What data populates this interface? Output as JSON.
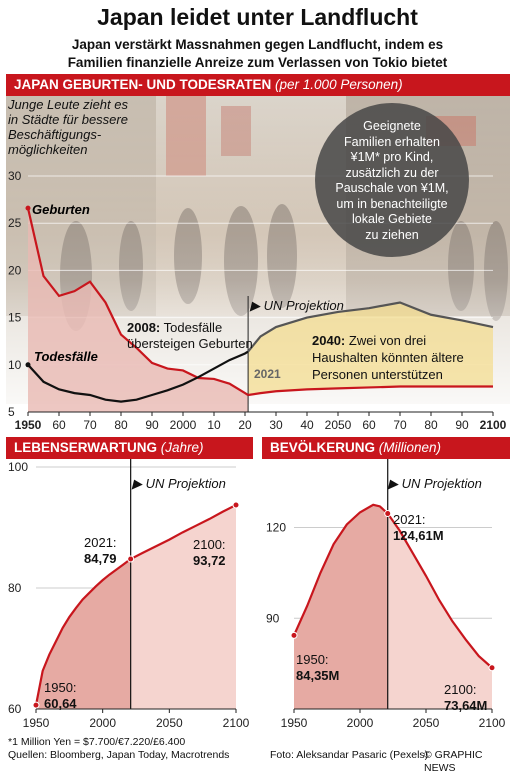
{
  "header": {
    "title": "Japan leidet unter Landflucht",
    "subtitle_line1": "Japan verstärkt Massnahmen gegen Landflucht, indem es",
    "subtitle_line2": "Familien finanzielle Anreize zum Verlassen von Tokio bietet"
  },
  "top_panel": {
    "band_title": "JAPAN GEBURTEN- UND TODESRATEN",
    "band_unit": "(per 1.000 Personen)",
    "note_lines": [
      "Junge Leute zieht es",
      "in Städte für bessere",
      "Beschäftigungs-",
      "möglichkeiten"
    ],
    "bubble_lines": [
      "Geeignete",
      "Familien erhalten",
      "¥1M* pro Kind,",
      "zusätzlich zu der",
      "Pauschale von ¥1M,",
      "um in benachteiligte",
      "lokale Gebiete",
      "zu ziehen"
    ],
    "projection_label": "UN Projektion",
    "year_2021_label": "2021",
    "annotation_2008_bold": "2008:",
    "annotation_2008_line1": "Todesfälle",
    "annotation_2008_line2": "übersteigen Geburten",
    "annotation_2040_bold": "2040:",
    "annotation_2040_line1": "Zwei von drei",
    "annotation_2040_line2": "Haushalten könnten ältere",
    "annotation_2040_line3": "Personen unterstützen",
    "y_ticks": [
      "30",
      "25",
      "20",
      "15",
      "10",
      "5"
    ],
    "x_ticks": [
      "1950",
      "60",
      "70",
      "80",
      "90",
      "2000",
      "10",
      "20",
      "30",
      "40",
      "2050",
      "60",
      "70",
      "80",
      "90",
      "2100"
    ]
  },
  "life_panel": {
    "band_title": "LEBENSERWARTUNG",
    "band_unit": "(Jahre)",
    "projection_label": "UN Projektion",
    "label_1950_year": "1950:",
    "label_1950_value": "60,64",
    "label_2021_year": "2021:",
    "label_2021_value": "84,79",
    "label_2100_year": "2100:",
    "label_2100_value": "93,72",
    "y_ticks": [
      "100",
      "80",
      "60"
    ],
    "x_ticks": [
      "1950",
      "2000",
      "2050",
      "2100"
    ]
  },
  "pop_panel": {
    "band_title": "BEVÖLKERUNG",
    "band_unit": "(Millionen)",
    "projection_label": "UN Projektion",
    "label_1950_year": "1950:",
    "label_1950_value": "84,35M",
    "label_2021_year": "2021:",
    "label_2021_value": "124,61M",
    "label_2100_year": "2100:",
    "label_2100_value": "73,64M",
    "y_ticks": [
      "120",
      "90"
    ],
    "x_ticks": [
      "1950",
      "2000",
      "2050",
      "2100"
    ]
  },
  "footer": {
    "footnote": "*1 Million Yen = $7.700/€7.220/£6.400",
    "sources": "Quellen: Bloomberg, Japan Today, Macrotrends",
    "photo_credit": "Foto: Aleksandar Pasaric (Pexels)",
    "brand": "© GRAPHIC NEWS"
  },
  "colors": {
    "accent": "#c8161d",
    "births_line": "#c8161d",
    "deaths_line": "#111111",
    "projection_fill": "#f3dc8a",
    "area_fill": "#e9b9b3"
  },
  "chart_data": [
    {
      "type": "line",
      "title": "JAPAN GEBURTEN- UND TODESRATEN (per 1.000 Personen)",
      "x": [
        1950,
        1955,
        1960,
        1965,
        1970,
        1975,
        1980,
        1985,
        1990,
        1995,
        2000,
        2005,
        2010,
        2015,
        2020,
        2021,
        2025,
        2030,
        2040,
        2050,
        2060,
        2070,
        2080,
        2090,
        2100
      ],
      "series": [
        {
          "name": "Geburten",
          "values": [
            26.6,
            19.4,
            17.3,
            17.8,
            18.8,
            16.6,
            13.2,
            11.8,
            10.2,
            9.6,
            9.4,
            8.6,
            8.5,
            8.0,
            7.0,
            6.8,
            7.0,
            7.2,
            7.4,
            7.5,
            7.6,
            7.7,
            7.7,
            7.7,
            7.7
          ]
        },
        {
          "name": "Todesfälle",
          "values": [
            10.0,
            8.2,
            7.4,
            7.0,
            6.8,
            6.3,
            6.1,
            6.3,
            6.8,
            7.3,
            7.9,
            8.7,
            9.6,
            10.5,
            11.2,
            11.4,
            13.0,
            14.0,
            15.0,
            15.6,
            16.0,
            16.6,
            15.3,
            14.7,
            14.0
          ]
        }
      ],
      "projection_start": 2021,
      "xlim": [
        1950,
        2100
      ],
      "ylim": [
        5,
        30
      ],
      "y_ticks": [
        5,
        10,
        15,
        20,
        25,
        30
      ]
    },
    {
      "type": "area",
      "title": "LEBENSERWARTUNG (Jahre)",
      "x": [
        1950,
        1955,
        1960,
        1965,
        1970,
        1975,
        1980,
        1985,
        1990,
        1995,
        2000,
        2005,
        2010,
        2015,
        2021,
        2030,
        2040,
        2050,
        2060,
        2070,
        2080,
        2090,
        2100
      ],
      "values": [
        60.64,
        66.3,
        69.0,
        71.2,
        73.4,
        75.2,
        76.7,
        78.1,
        79.2,
        80.3,
        81.3,
        82.2,
        83.0,
        83.8,
        84.79,
        85.8,
        86.9,
        88.0,
        89.2,
        90.3,
        91.4,
        92.6,
        93.72
      ],
      "projection_start": 2021,
      "xlim": [
        1950,
        2100
      ],
      "ylim": [
        60,
        100
      ],
      "y_ticks": [
        60,
        80,
        100
      ]
    },
    {
      "type": "area",
      "title": "BEVÖLKERUNG (Millionen)",
      "x": [
        1950,
        1960,
        1970,
        1980,
        1990,
        2000,
        2010,
        2015,
        2021,
        2030,
        2040,
        2050,
        2060,
        2070,
        2080,
        2090,
        2100
      ],
      "values": [
        84.35,
        94.1,
        105.0,
        114.5,
        121.0,
        125.0,
        127.5,
        127.0,
        124.61,
        119.0,
        111.5,
        104.0,
        96.0,
        89.0,
        83.0,
        77.5,
        73.64
      ],
      "projection_start": 2021,
      "xlim": [
        1950,
        2100
      ],
      "ylim": [
        60,
        140
      ],
      "y_ticks": [
        90,
        120
      ]
    }
  ]
}
